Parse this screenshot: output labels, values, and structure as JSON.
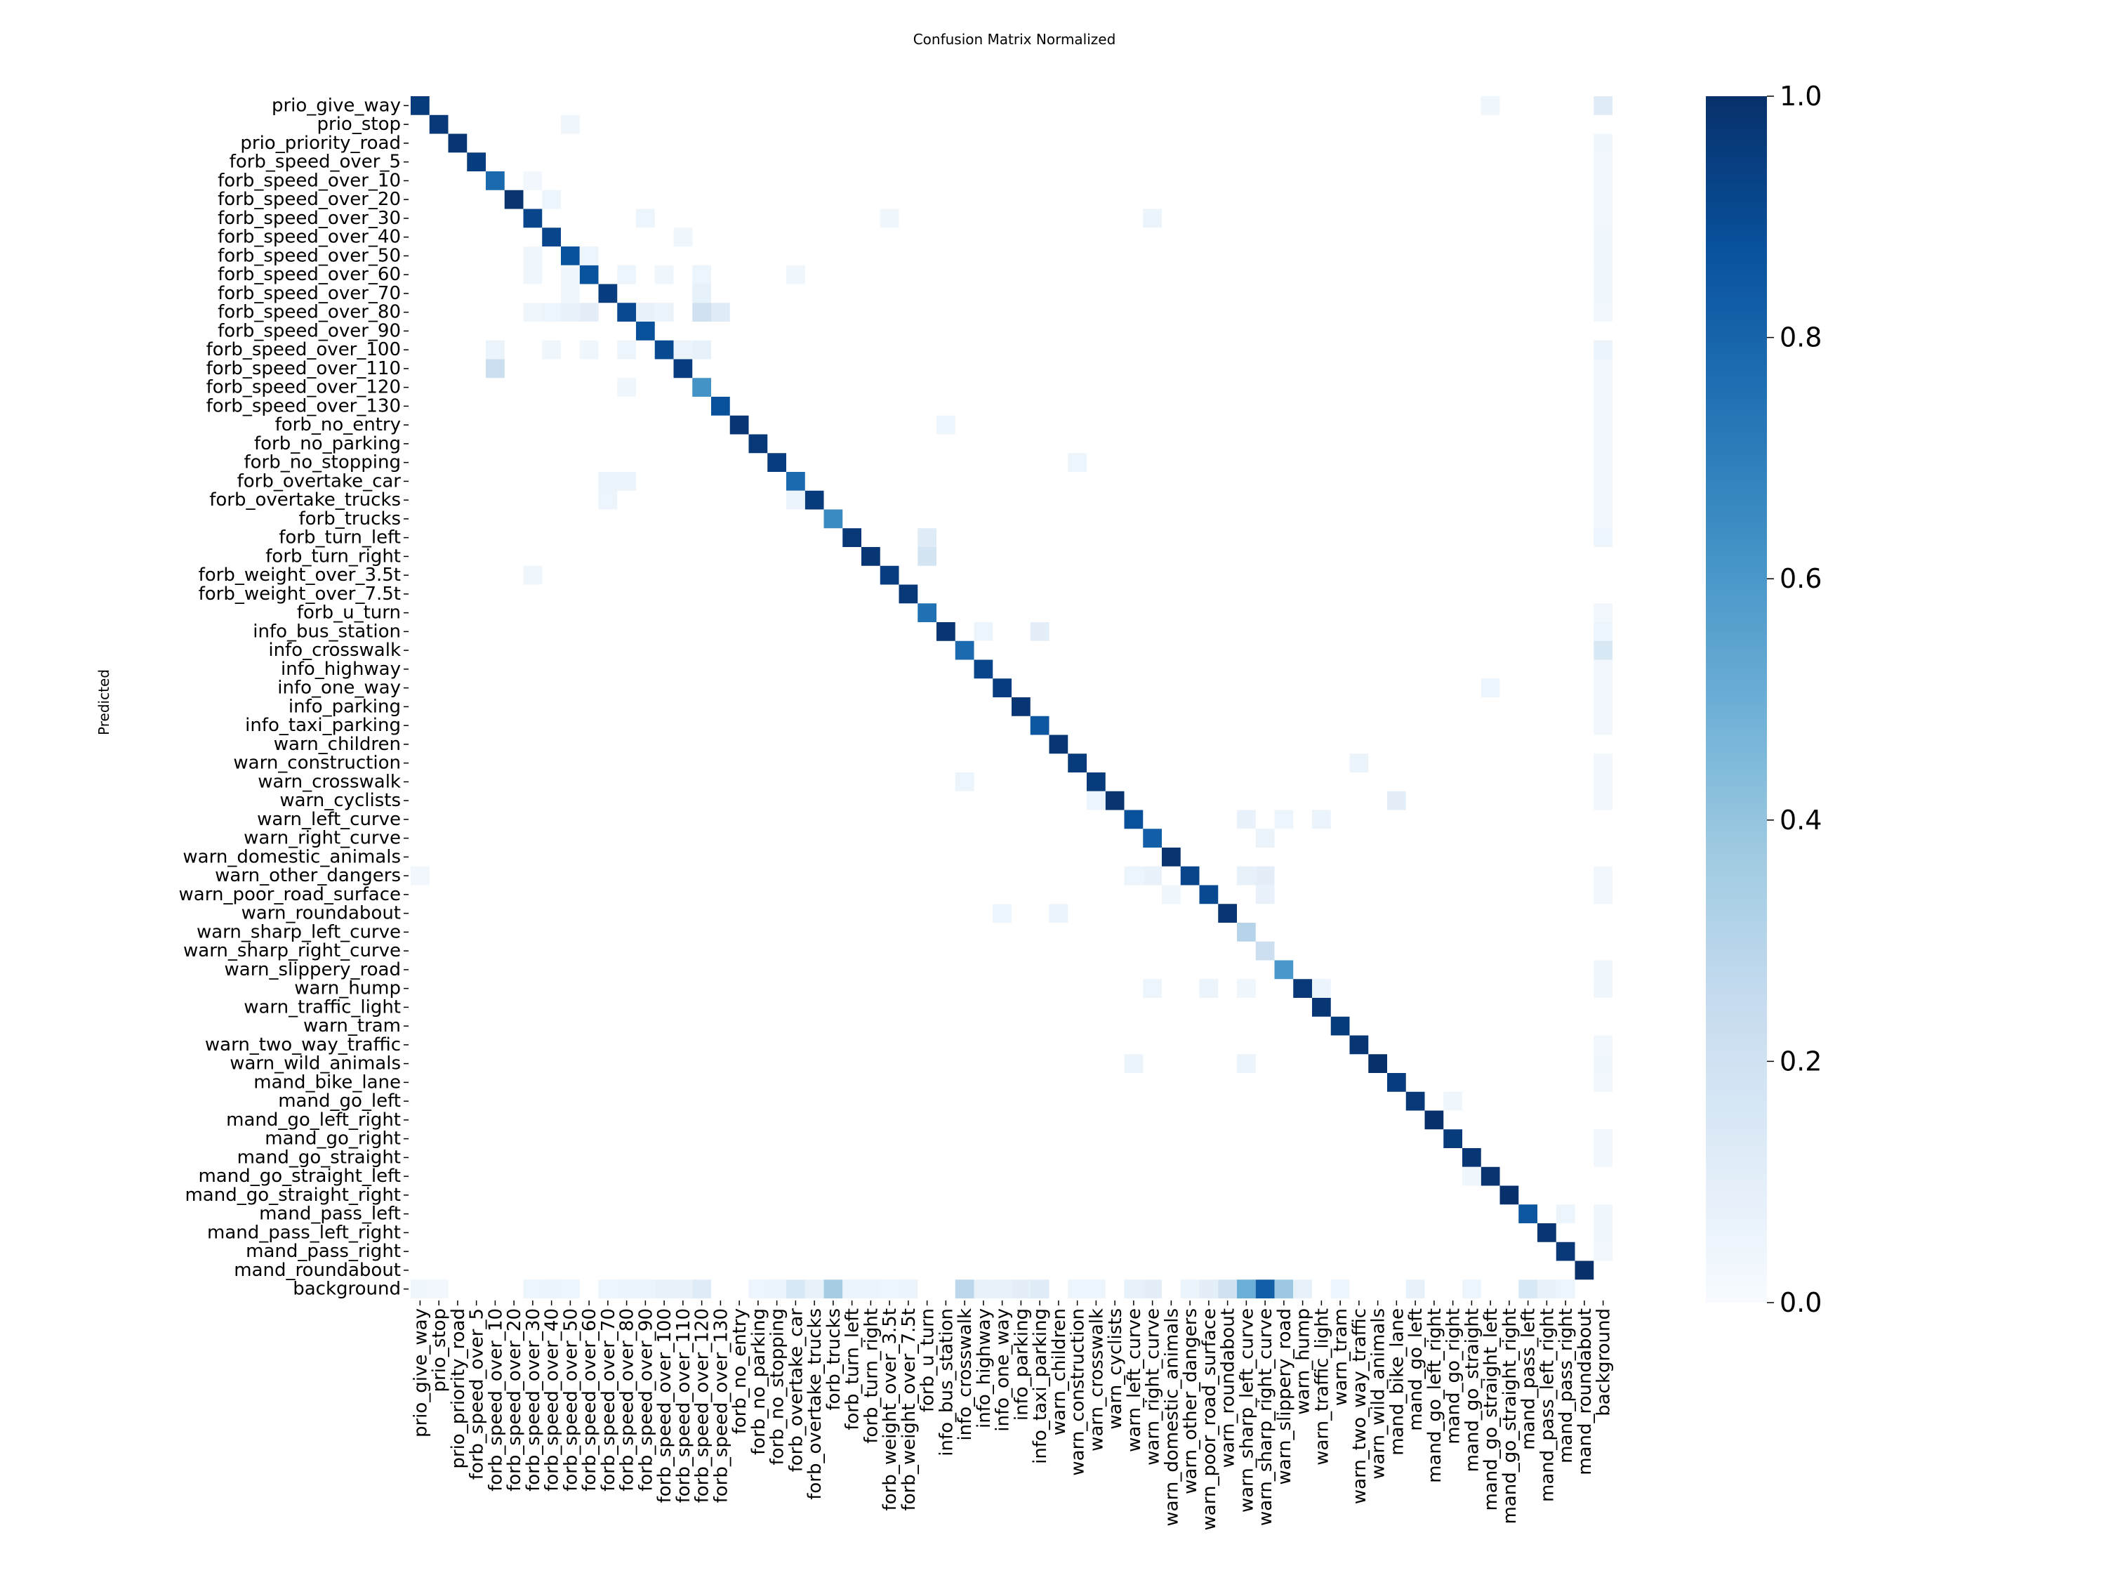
{
  "chart_data": {
    "type": "heatmap",
    "title": "Confusion Matrix Normalized",
    "xlabel": "",
    "ylabel": "Predicted",
    "colorbar": {
      "ticks": [
        "0.0",
        "0.2",
        "0.4",
        "0.6",
        "0.8",
        "1.0"
      ],
      "min": 0,
      "max": 1
    },
    "colormap": {
      "low": "#f7fbff",
      "high": "#08306b"
    },
    "classes": [
      "prio_give_way",
      "prio_stop",
      "prio_priority_road",
      "forb_speed_over_5",
      "forb_speed_over_10",
      "forb_speed_over_20",
      "forb_speed_over_30",
      "forb_speed_over_40",
      "forb_speed_over_50",
      "forb_speed_over_60",
      "forb_speed_over_70",
      "forb_speed_over_80",
      "forb_speed_over_90",
      "forb_speed_over_100",
      "forb_speed_over_110",
      "forb_speed_over_120",
      "forb_speed_over_130",
      "forb_no_entry",
      "forb_no_parking",
      "forb_no_stopping",
      "forb_overtake_car",
      "forb_overtake_trucks",
      "forb_trucks",
      "forb_turn_left",
      "forb_turn_right",
      "forb_weight_over_3.5t",
      "forb_weight_over_7.5t",
      "forb_u_turn",
      "info_bus_station",
      "info_crosswalk",
      "info_highway",
      "info_one_way",
      "info_parking",
      "info_taxi_parking",
      "warn_children",
      "warn_construction",
      "warn_crosswalk",
      "warn_cyclists",
      "warn_left_curve",
      "warn_right_curve",
      "warn_domestic_animals",
      "warn_other_dangers",
      "warn_poor_road_surface",
      "warn_roundabout",
      "warn_sharp_left_curve",
      "warn_sharp_right_curve",
      "warn_slippery_road",
      "warn_hump",
      "warn_traffic_light",
      "warn_tram",
      "warn_two_way_traffic",
      "warn_wild_animals",
      "mand_bike_lane",
      "mand_go_left",
      "mand_go_left_right",
      "mand_go_right",
      "mand_go_straight",
      "mand_go_straight_left",
      "mand_go_straight_right",
      "mand_pass_left",
      "mand_pass_left_right",
      "mand_pass_right",
      "mand_roundabout",
      "background"
    ],
    "diagonal": [
      0.96,
      0.97,
      0.98,
      0.95,
      0.78,
      0.99,
      0.92,
      0.92,
      0.88,
      0.87,
      0.95,
      0.9,
      0.88,
      0.9,
      0.95,
      0.62,
      0.88,
      0.98,
      0.97,
      0.95,
      0.78,
      0.96,
      0.65,
      0.97,
      0.98,
      0.95,
      0.97,
      0.75,
      0.98,
      0.78,
      0.92,
      0.95,
      0.98,
      0.85,
      0.98,
      0.96,
      0.96,
      0.99,
      0.88,
      0.82,
      0.99,
      0.92,
      0.9,
      0.98,
      0.3,
      0.22,
      0.6,
      0.97,
      0.98,
      0.96,
      0.98,
      1.0,
      0.95,
      0.97,
      1.0,
      0.96,
      0.98,
      0.99,
      1.0,
      0.85,
      0.98,
      0.97,
      1.0,
      0.0
    ],
    "off_diagonal": [
      [
        0,
        57,
        0.04
      ],
      [
        0,
        63,
        0.12
      ],
      [
        1,
        8,
        0.04
      ],
      [
        2,
        63,
        0.04
      ],
      [
        3,
        63,
        0.03
      ],
      [
        4,
        6,
        0.03
      ],
      [
        4,
        63,
        0.03
      ],
      [
        5,
        7,
        0.05
      ],
      [
        5,
        63,
        0.03
      ],
      [
        6,
        12,
        0.05
      ],
      [
        6,
        25,
        0.04
      ],
      [
        6,
        39,
        0.06
      ],
      [
        6,
        63,
        0.03
      ],
      [
        7,
        14,
        0.04
      ],
      [
        7,
        63,
        0.04
      ],
      [
        8,
        6,
        0.04
      ],
      [
        8,
        9,
        0.05
      ],
      [
        8,
        63,
        0.04
      ],
      [
        9,
        6,
        0.04
      ],
      [
        9,
        8,
        0.04
      ],
      [
        9,
        11,
        0.05
      ],
      [
        9,
        13,
        0.04
      ],
      [
        9,
        15,
        0.05
      ],
      [
        9,
        20,
        0.04
      ],
      [
        9,
        63,
        0.04
      ],
      [
        10,
        8,
        0.04
      ],
      [
        10,
        15,
        0.08
      ],
      [
        10,
        63,
        0.04
      ],
      [
        11,
        6,
        0.04
      ],
      [
        11,
        7,
        0.05
      ],
      [
        11,
        8,
        0.07
      ],
      [
        11,
        9,
        0.1
      ],
      [
        11,
        12,
        0.08
      ],
      [
        11,
        13,
        0.06
      ],
      [
        11,
        15,
        0.2
      ],
      [
        11,
        16,
        0.12
      ],
      [
        11,
        63,
        0.03
      ],
      [
        13,
        4,
        0.06
      ],
      [
        13,
        7,
        0.04
      ],
      [
        13,
        9,
        0.04
      ],
      [
        13,
        11,
        0.05
      ],
      [
        13,
        14,
        0.06
      ],
      [
        13,
        15,
        0.08
      ],
      [
        13,
        63,
        0.06
      ],
      [
        14,
        4,
        0.22
      ],
      [
        14,
        63,
        0.03
      ],
      [
        15,
        11,
        0.04
      ],
      [
        15,
        63,
        0.03
      ],
      [
        16,
        63,
        0.03
      ],
      [
        17,
        28,
        0.05
      ],
      [
        17,
        63,
        0.03
      ],
      [
        18,
        63,
        0.03
      ],
      [
        19,
        35,
        0.05
      ],
      [
        19,
        63,
        0.03
      ],
      [
        20,
        10,
        0.06
      ],
      [
        20,
        11,
        0.06
      ],
      [
        20,
        63,
        0.03
      ],
      [
        21,
        10,
        0.05
      ],
      [
        21,
        20,
        0.06
      ],
      [
        21,
        63,
        0.03
      ],
      [
        22,
        63,
        0.03
      ],
      [
        23,
        27,
        0.12
      ],
      [
        23,
        63,
        0.05
      ],
      [
        24,
        27,
        0.18
      ],
      [
        25,
        6,
        0.04
      ],
      [
        27,
        63,
        0.03
      ],
      [
        28,
        30,
        0.05
      ],
      [
        28,
        33,
        0.1
      ],
      [
        28,
        63,
        0.05
      ],
      [
        29,
        63,
        0.15
      ],
      [
        30,
        63,
        0.03
      ],
      [
        31,
        57,
        0.05
      ],
      [
        31,
        63,
        0.03
      ],
      [
        32,
        63,
        0.03
      ],
      [
        33,
        63,
        0.03
      ],
      [
        35,
        50,
        0.06
      ],
      [
        35,
        63,
        0.03
      ],
      [
        36,
        29,
        0.05
      ],
      [
        36,
        63,
        0.03
      ],
      [
        37,
        36,
        0.05
      ],
      [
        37,
        52,
        0.1
      ],
      [
        37,
        63,
        0.03
      ],
      [
        38,
        44,
        0.07
      ],
      [
        38,
        46,
        0.05
      ],
      [
        38,
        48,
        0.06
      ],
      [
        39,
        45,
        0.06
      ],
      [
        41,
        0,
        0.03
      ],
      [
        41,
        38,
        0.05
      ],
      [
        41,
        39,
        0.07
      ],
      [
        41,
        44,
        0.08
      ],
      [
        41,
        45,
        0.1
      ],
      [
        41,
        63,
        0.03
      ],
      [
        42,
        40,
        0.04
      ],
      [
        42,
        45,
        0.07
      ],
      [
        42,
        63,
        0.03
      ],
      [
        43,
        31,
        0.05
      ],
      [
        43,
        34,
        0.06
      ],
      [
        46,
        63,
        0.04
      ],
      [
        47,
        39,
        0.05
      ],
      [
        47,
        42,
        0.06
      ],
      [
        47,
        44,
        0.04
      ],
      [
        47,
        48,
        0.06
      ],
      [
        47,
        63,
        0.04
      ],
      [
        50,
        63,
        0.03
      ],
      [
        51,
        38,
        0.06
      ],
      [
        51,
        44,
        0.06
      ],
      [
        51,
        63,
        0.04
      ],
      [
        52,
        63,
        0.03
      ],
      [
        53,
        55,
        0.04
      ],
      [
        55,
        63,
        0.03
      ],
      [
        56,
        63,
        0.03
      ],
      [
        57,
        56,
        0.04
      ],
      [
        59,
        61,
        0.05
      ],
      [
        59,
        63,
        0.04
      ],
      [
        60,
        63,
        0.04
      ],
      [
        61,
        63,
        0.03
      ],
      [
        63,
        0,
        0.04
      ],
      [
        63,
        1,
        0.03
      ],
      [
        63,
        6,
        0.05
      ],
      [
        63,
        7,
        0.06
      ],
      [
        63,
        8,
        0.05
      ],
      [
        63,
        10,
        0.05
      ],
      [
        63,
        11,
        0.06
      ],
      [
        63,
        12,
        0.06
      ],
      [
        63,
        13,
        0.08
      ],
      [
        63,
        14,
        0.07
      ],
      [
        63,
        15,
        0.12
      ],
      [
        63,
        18,
        0.05
      ],
      [
        63,
        19,
        0.06
      ],
      [
        63,
        20,
        0.15
      ],
      [
        63,
        21,
        0.08
      ],
      [
        63,
        22,
        0.35
      ],
      [
        63,
        23,
        0.06
      ],
      [
        63,
        24,
        0.06
      ],
      [
        63,
        25,
        0.05
      ],
      [
        63,
        26,
        0.06
      ],
      [
        63,
        29,
        0.28
      ],
      [
        63,
        30,
        0.08
      ],
      [
        63,
        31,
        0.08
      ],
      [
        63,
        32,
        0.1
      ],
      [
        63,
        33,
        0.12
      ],
      [
        63,
        35,
        0.05
      ],
      [
        63,
        36,
        0.05
      ],
      [
        63,
        38,
        0.08
      ],
      [
        63,
        39,
        0.1
      ],
      [
        63,
        41,
        0.06
      ],
      [
        63,
        42,
        0.1
      ],
      [
        63,
        43,
        0.2
      ],
      [
        63,
        44,
        0.5
      ],
      [
        63,
        45,
        0.82
      ],
      [
        63,
        46,
        0.38
      ],
      [
        63,
        47,
        0.08
      ],
      [
        63,
        49,
        0.05
      ],
      [
        63,
        53,
        0.08
      ],
      [
        63,
        56,
        0.05
      ],
      [
        63,
        59,
        0.15
      ],
      [
        63,
        60,
        0.08
      ],
      [
        63,
        61,
        0.05
      ]
    ]
  }
}
